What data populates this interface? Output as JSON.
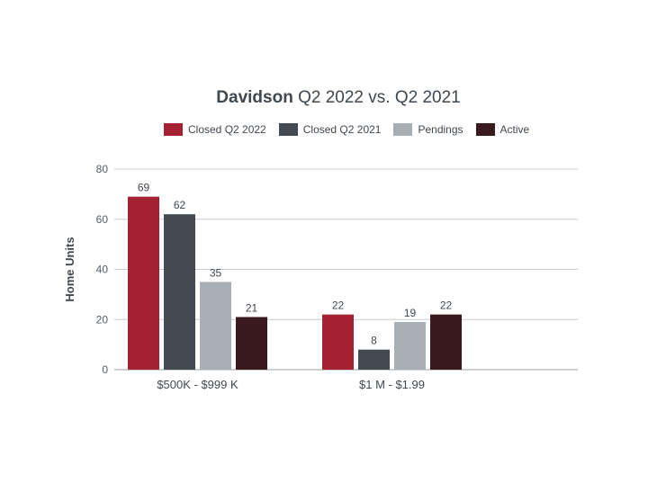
{
  "chart_data": {
    "type": "bar",
    "title_bold": "Davidson",
    "title_rest": " Q2 2022 vs. Q2 2021",
    "ylabel": "Home Units",
    "xlabel": "",
    "ylim": [
      0,
      80
    ],
    "yticks": [
      0,
      20,
      40,
      60,
      80
    ],
    "grid": true,
    "legend_position": "top",
    "categories": [
      "$500K - $999 K",
      "$1 M - $1.99"
    ],
    "series": [
      {
        "name": "Closed Q2 2022",
        "color": "#a52232",
        "values": [
          69,
          22
        ]
      },
      {
        "name": "Closed Q2 2021",
        "color": "#434a52",
        "values": [
          62,
          8
        ]
      },
      {
        "name": "Pendings",
        "color": "#a7aeb4",
        "values": [
          35,
          19
        ]
      },
      {
        "name": "Active",
        "color": "#3b1a1e",
        "values": [
          21,
          22
        ]
      }
    ]
  }
}
